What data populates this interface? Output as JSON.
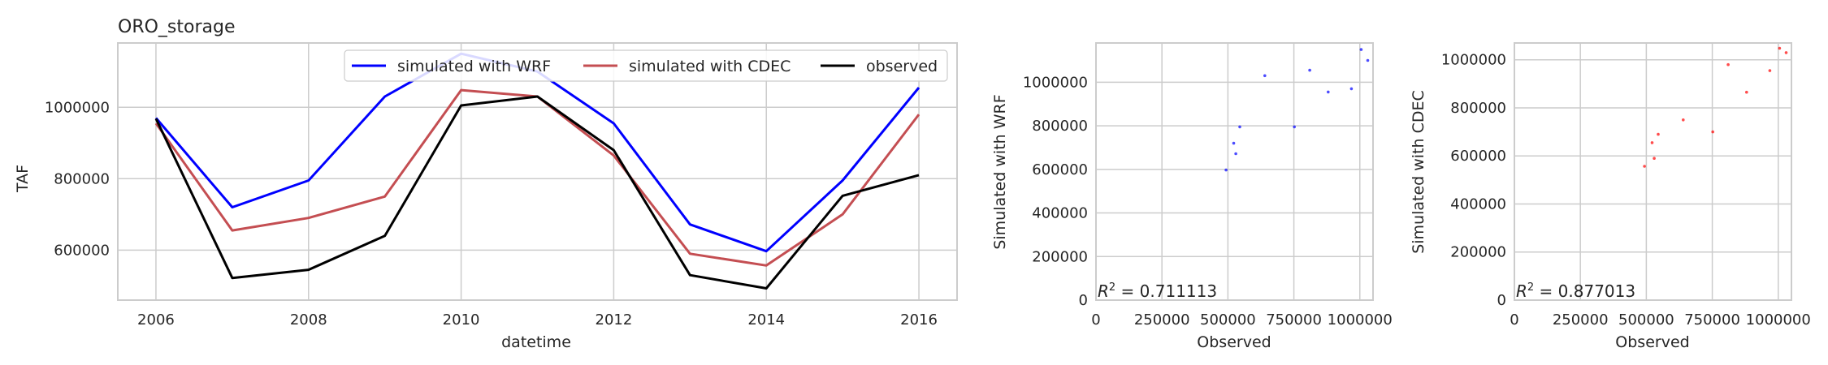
{
  "chart_data": [
    {
      "type": "line",
      "title": "ORO_storage",
      "xlabel": "datetime",
      "ylabel": "TAF",
      "xlim": [
        2005.5,
        2016.5
      ],
      "ylim": [
        460000,
        1180000
      ],
      "x_ticks": [
        2006,
        2008,
        2010,
        2012,
        2014,
        2016
      ],
      "x_tick_labels": [
        "2006",
        "2008",
        "2010",
        "2012",
        "2014",
        "2016"
      ],
      "y_ticks": [
        600000,
        800000,
        1000000
      ],
      "y_tick_labels": [
        "600000",
        "800000",
        "1000000"
      ],
      "grid": true,
      "legend_position": "top-right",
      "x": [
        2006,
        2007,
        2008,
        2009,
        2010,
        2011,
        2012,
        2013,
        2014,
        2015,
        2016
      ],
      "series": [
        {
          "name": "simulated with WRF",
          "color": "#0000ff",
          "values": [
            970000,
            720000,
            795000,
            1030000,
            1150000,
            1100000,
            955000,
            672000,
            597000,
            795000,
            1055000
          ]
        },
        {
          "name": "simulated with CDEC",
          "color": "#c44e52",
          "values": [
            955000,
            655000,
            690000,
            750000,
            1048000,
            1030000,
            865000,
            590000,
            557000,
            700000,
            980000
          ]
        },
        {
          "name": "observed",
          "color": "#000000",
          "values": [
            968000,
            522000,
            545000,
            640000,
            1005000,
            1030000,
            880000,
            530000,
            493000,
            752000,
            810000
          ]
        }
      ]
    },
    {
      "type": "scatter",
      "xlabel": "Observed",
      "ylabel": "Simulated with WRF",
      "xlim": [
        0,
        1050000
      ],
      "ylim": [
        0,
        1180000
      ],
      "x_ticks": [
        0,
        250000,
        500000,
        750000,
        1000000
      ],
      "x_tick_labels": [
        "0",
        "250000",
        "500000",
        "750000",
        "1000000"
      ],
      "y_ticks": [
        0,
        200000,
        400000,
        600000,
        800000,
        1000000
      ],
      "y_tick_labels": [
        "0",
        "200000",
        "400000",
        "600000",
        "800000",
        "1000000"
      ],
      "grid": true,
      "point_color": "#0000ff",
      "annotation": "R² = 0.711113",
      "annotation_r2_value": "0.711113",
      "x": [
        493000,
        522000,
        530000,
        545000,
        640000,
        752000,
        810000,
        880000,
        968000,
        1005000,
        1030000
      ],
      "y": [
        597000,
        720000,
        672000,
        795000,
        1030000,
        795000,
        1055000,
        955000,
        970000,
        1150000,
        1100000
      ]
    },
    {
      "type": "scatter",
      "xlabel": "Observed",
      "ylabel": "Simulated with CDEC",
      "xlim": [
        0,
        1050000
      ],
      "ylim": [
        0,
        1070000
      ],
      "x_ticks": [
        0,
        250000,
        500000,
        750000,
        1000000
      ],
      "x_tick_labels": [
        "0",
        "250000",
        "500000",
        "750000",
        "1000000"
      ],
      "y_ticks": [
        0,
        200000,
        400000,
        600000,
        800000,
        1000000
      ],
      "y_tick_labels": [
        "0",
        "200000",
        "400000",
        "600000",
        "800000",
        "1000000"
      ],
      "grid": true,
      "point_color": "#ff0000",
      "annotation": "R² = 0.877013",
      "annotation_r2_value": "0.877013",
      "x": [
        493000,
        522000,
        530000,
        545000,
        640000,
        752000,
        810000,
        880000,
        968000,
        1005000,
        1030000
      ],
      "y": [
        557000,
        655000,
        590000,
        690000,
        750000,
        700000,
        980000,
        865000,
        955000,
        1048000,
        1030000
      ]
    }
  ]
}
